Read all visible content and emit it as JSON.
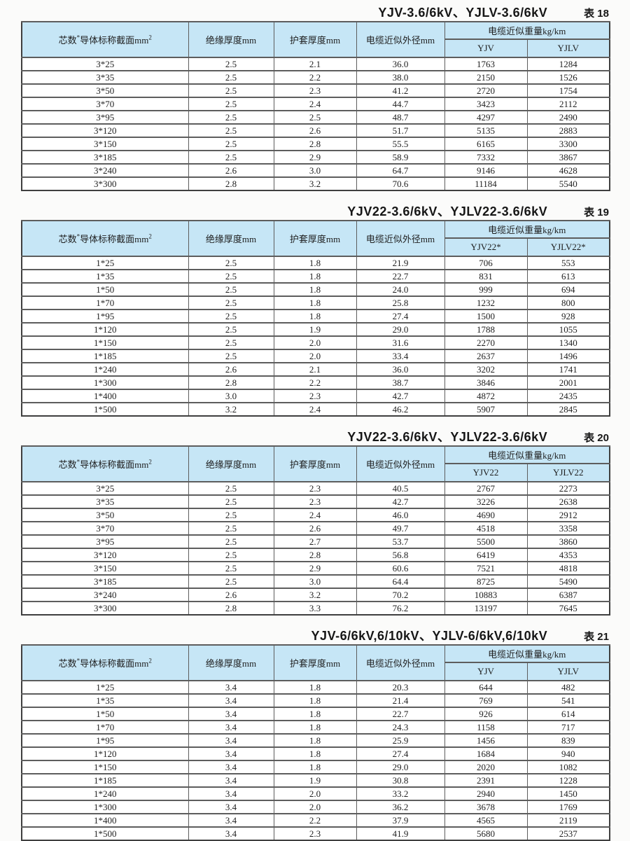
{
  "headers": {
    "col1_pre": "芯数",
    "col1_sup": "*",
    "col1_mid": "导体标称截面mm",
    "col1_sup2": "2",
    "col2": "绝缘厚度mm",
    "col3": "护套厚度mm",
    "col4": "电缆近似外径mm",
    "weight": "电缆近似重量kg/km"
  },
  "colors": {
    "header_bg": "#c6e6f6",
    "border": "#3f3f3f",
    "text": "#222222"
  },
  "tables": [
    {
      "title": "YJV-3.6/6kV、YJLV-3.6/6kV",
      "label": "表 18",
      "sub1": "YJV",
      "sub2": "YJLV",
      "rows": [
        [
          "3*25",
          "2.5",
          "2.1",
          "36.0",
          "1763",
          "1284"
        ],
        [
          "3*35",
          "2.5",
          "2.2",
          "38.0",
          "2150",
          "1526"
        ],
        [
          "3*50",
          "2.5",
          "2.3",
          "41.2",
          "2720",
          "1754"
        ],
        [
          "3*70",
          "2.5",
          "2.4",
          "44.7",
          "3423",
          "2112"
        ],
        [
          "3*95",
          "2.5",
          "2.5",
          "48.7",
          "4297",
          "2490"
        ],
        [
          "3*120",
          "2.5",
          "2.6",
          "51.7",
          "5135",
          "2883"
        ],
        [
          "3*150",
          "2.5",
          "2.8",
          "55.5",
          "6165",
          "3300"
        ],
        [
          "3*185",
          "2.5",
          "2.9",
          "58.9",
          "7332",
          "3867"
        ],
        [
          "3*240",
          "2.6",
          "3.0",
          "64.7",
          "9146",
          "4628"
        ],
        [
          "3*300",
          "2.8",
          "3.2",
          "70.6",
          "11184",
          "5540"
        ]
      ]
    },
    {
      "title": "YJV22-3.6/6kV、YJLV22-3.6/6kV",
      "label": "表 19",
      "sub1": "YJV22*",
      "sub2": "YJLV22*",
      "rows": [
        [
          "1*25",
          "2.5",
          "1.8",
          "21.9",
          "706",
          "553"
        ],
        [
          "1*35",
          "2.5",
          "1.8",
          "22.7",
          "831",
          "613"
        ],
        [
          "1*50",
          "2.5",
          "1.8",
          "24.0",
          "999",
          "694"
        ],
        [
          "1*70",
          "2.5",
          "1.8",
          "25.8",
          "1232",
          "800"
        ],
        [
          "1*95",
          "2.5",
          "1.8",
          "27.4",
          "1500",
          "928"
        ],
        [
          "1*120",
          "2.5",
          "1.9",
          "29.0",
          "1788",
          "1055"
        ],
        [
          "1*150",
          "2.5",
          "2.0",
          "31.6",
          "2270",
          "1340"
        ],
        [
          "1*185",
          "2.5",
          "2.0",
          "33.4",
          "2637",
          "1496"
        ],
        [
          "1*240",
          "2.6",
          "2.1",
          "36.0",
          "3202",
          "1741"
        ],
        [
          "1*300",
          "2.8",
          "2.2",
          "38.7",
          "3846",
          "2001"
        ],
        [
          "1*400",
          "3.0",
          "2.3",
          "42.7",
          "4872",
          "2435"
        ],
        [
          "1*500",
          "3.2",
          "2.4",
          "46.2",
          "5907",
          "2845"
        ]
      ]
    },
    {
      "title": "YJV22-3.6/6kV、YJLV22-3.6/6kV",
      "label": "表 20",
      "sub1": "YJV22",
      "sub2": "YJLV22",
      "rows": [
        [
          "3*25",
          "2.5",
          "2.3",
          "40.5",
          "2767",
          "2273"
        ],
        [
          "3*35",
          "2.5",
          "2.3",
          "42.7",
          "3226",
          "2638"
        ],
        [
          "3*50",
          "2.5",
          "2.4",
          "46.0",
          "4690",
          "2912"
        ],
        [
          "3*70",
          "2.5",
          "2.6",
          "49.7",
          "4518",
          "3358"
        ],
        [
          "3*95",
          "2.5",
          "2.7",
          "53.7",
          "5500",
          "3860"
        ],
        [
          "3*120",
          "2.5",
          "2.8",
          "56.8",
          "6419",
          "4353"
        ],
        [
          "3*150",
          "2.5",
          "2.9",
          "60.6",
          "7521",
          "4818"
        ],
        [
          "3*185",
          "2.5",
          "3.0",
          "64.4",
          "8725",
          "5490"
        ],
        [
          "3*240",
          "2.6",
          "3.2",
          "70.2",
          "10883",
          "6387"
        ],
        [
          "3*300",
          "2.8",
          "3.3",
          "76.2",
          "13197",
          "7645"
        ]
      ]
    },
    {
      "title": "YJV-6/6kV,6/10kV、YJLV-6/6kV,6/10kV",
      "label": "表 21",
      "sub1": "YJV",
      "sub2": "YJLV",
      "rows": [
        [
          "1*25",
          "3.4",
          "1.8",
          "20.3",
          "644",
          "482"
        ],
        [
          "1*35",
          "3.4",
          "1.8",
          "21.4",
          "769",
          "541"
        ],
        [
          "1*50",
          "3.4",
          "1.8",
          "22.7",
          "926",
          "614"
        ],
        [
          "1*70",
          "3.4",
          "1.8",
          "24.3",
          "1158",
          "717"
        ],
        [
          "1*95",
          "3.4",
          "1.8",
          "25.9",
          "1456",
          "839"
        ],
        [
          "1*120",
          "3.4",
          "1.8",
          "27.4",
          "1684",
          "940"
        ],
        [
          "1*150",
          "3.4",
          "1.8",
          "29.0",
          "2020",
          "1082"
        ],
        [
          "1*185",
          "3.4",
          "1.9",
          "30.8",
          "2391",
          "1228"
        ],
        [
          "1*240",
          "3.4",
          "2.0",
          "33.2",
          "2940",
          "1450"
        ],
        [
          "1*300",
          "3.4",
          "2.0",
          "36.2",
          "3678",
          "1769"
        ],
        [
          "1*400",
          "3.4",
          "2.2",
          "37.9",
          "4565",
          "2119"
        ],
        [
          "1*500",
          "3.4",
          "2.3",
          "41.9",
          "5680",
          "2537"
        ]
      ]
    }
  ]
}
